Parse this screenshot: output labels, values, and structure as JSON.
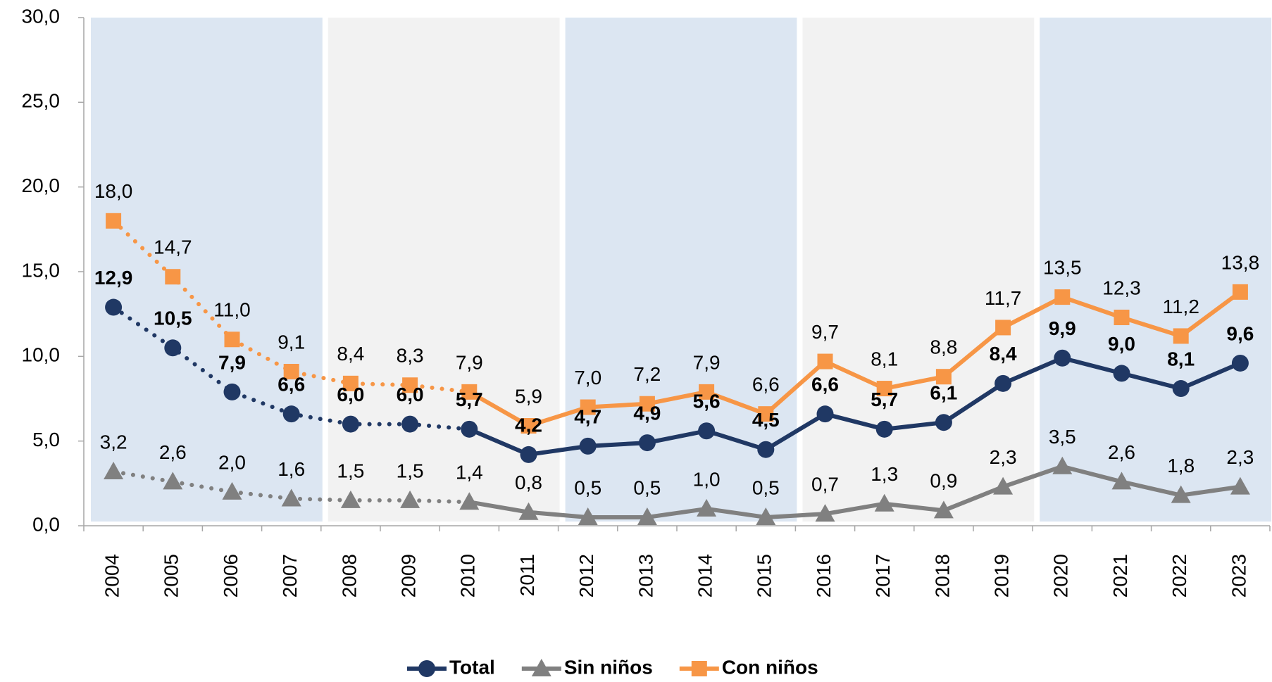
{
  "chart_data": {
    "type": "line",
    "categories": [
      "2004",
      "2005",
      "2006",
      "2007",
      "2008",
      "2009",
      "2010",
      "2011",
      "2012",
      "2013",
      "2014",
      "2015",
      "2016",
      "2017",
      "2018",
      "2019",
      "2020",
      "2021",
      "2022",
      "2023"
    ],
    "dotted_through": "2010",
    "background": [
      {
        "from": "2004",
        "to": "2007",
        "color": "#dce6f2"
      },
      {
        "from": "2008",
        "to": "2011",
        "color": "#f2f2f2"
      },
      {
        "from": "2012",
        "to": "2015",
        "color": "#dce6f2"
      },
      {
        "from": "2016",
        "to": "2019",
        "color": "#f2f2f2"
      },
      {
        "from": "2020",
        "to": "2023",
        "color": "#dce6f2"
      }
    ],
    "series": [
      {
        "name": "Total",
        "color": "#203864",
        "marker": "circle",
        "bold_labels": true,
        "values": [
          12.9,
          10.5,
          7.9,
          6.6,
          6.0,
          6.0,
          5.7,
          4.2,
          4.7,
          4.9,
          5.6,
          4.5,
          6.6,
          5.7,
          6.1,
          8.4,
          9.9,
          9.0,
          8.1,
          9.6
        ],
        "value_labels": [
          "12,9",
          "10,5",
          "7,9",
          "6,6",
          "6,0",
          "6,0",
          "5,7",
          "4,2",
          "4,7",
          "4,9",
          "5,6",
          "4,5",
          "6,6",
          "5,7",
          "6,1",
          "8,4",
          "9,9",
          "9,0",
          "8,1",
          "9,6"
        ]
      },
      {
        "name": "Sin niños",
        "color": "#808080",
        "marker": "triangle",
        "bold_labels": false,
        "values": [
          3.2,
          2.6,
          2.0,
          1.6,
          1.5,
          1.5,
          1.4,
          0.8,
          0.5,
          0.5,
          1.0,
          0.5,
          0.7,
          1.3,
          0.9,
          2.3,
          3.5,
          2.6,
          1.8,
          2.3
        ],
        "value_labels": [
          "3,2",
          "2,6",
          "2,0",
          "1,6",
          "1,5",
          "1,5",
          "1,4",
          "0,8",
          "0,5",
          "0,5",
          "1,0",
          "0,5",
          "0,7",
          "1,3",
          "0,9",
          "2,3",
          "3,5",
          "2,6",
          "1,8",
          "2,3"
        ]
      },
      {
        "name": "Con niños",
        "color": "#f79646",
        "marker": "square",
        "bold_labels": false,
        "values": [
          18.0,
          14.7,
          11.0,
          9.1,
          8.4,
          8.3,
          7.9,
          5.9,
          7.0,
          7.2,
          7.9,
          6.6,
          9.7,
          8.1,
          8.8,
          11.7,
          13.5,
          12.3,
          11.2,
          13.8
        ],
        "value_labels": [
          "18,0",
          "14,7",
          "11,0",
          "9,1",
          "8,4",
          "8,3",
          "7,9",
          "5,9",
          "7,0",
          "7,2",
          "7,9",
          "6,6",
          "9,7",
          "8,1",
          "8,8",
          "11,7",
          "13,5",
          "12,3",
          "11,2",
          "13,8"
        ]
      }
    ],
    "ylim": [
      0,
      30
    ],
    "yticks": [
      {
        "value": 0,
        "label": "0,0"
      },
      {
        "value": 5,
        "label": "5,0"
      },
      {
        "value": 10,
        "label": "10,0"
      },
      {
        "value": 15,
        "label": "15,0"
      },
      {
        "value": 20,
        "label": "20,0"
      },
      {
        "value": 25,
        "label": "25,0"
      },
      {
        "value": 30,
        "label": "30,0"
      }
    ],
    "legend": "bottom"
  }
}
